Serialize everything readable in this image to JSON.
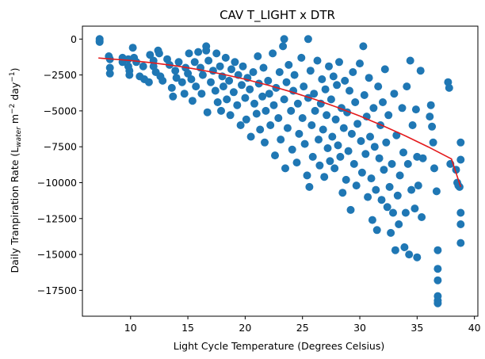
{
  "chart_data": {
    "type": "scatter",
    "title": "CAV T_LIGHT x DTR",
    "xlabel": "Light Cycle Temperature (Degrees Celsius)",
    "ylabel": {
      "pre": "Daily Tranpiration Rate (L",
      "sub1": "water",
      "mid": " m",
      "sup1": "−2",
      "mid2": " day",
      "sup2": "−1",
      "post": ")"
    },
    "xlim": [
      5.8,
      40.3
    ],
    "ylim": [
      -19300,
      900
    ],
    "xticks": [
      10,
      15,
      20,
      25,
      30,
      35,
      40
    ],
    "yticks": [
      0,
      -2500,
      -5000,
      -7500,
      -10000,
      -12500,
      -15000,
      -17500
    ],
    "ytick_labels": [
      "0",
      "−2500",
      "−5000",
      "−7500",
      "−10000",
      "−12500",
      "−15000",
      "−17500"
    ],
    "grid": false,
    "colors": {
      "points": "#1f77b4",
      "fit": "#e41a1c"
    },
    "fit_line": {
      "x": [
        7.2,
        10,
        12,
        14,
        16,
        18,
        20,
        22,
        24,
        26,
        28,
        30,
        32,
        34,
        36,
        38,
        38.8
      ],
      "y": [
        -1320,
        -1490,
        -1660,
        -1870,
        -2130,
        -2440,
        -2800,
        -3210,
        -3670,
        -4180,
        -4740,
        -5360,
        -6030,
        -6750,
        -7520,
        -8350,
        -10300
      ]
    },
    "points": [
      [
        7.3,
        0
      ],
      [
        7.3,
        -200
      ],
      [
        7.3,
        -120
      ],
      [
        8.1,
        -1200
      ],
      [
        8.2,
        -1400
      ],
      [
        8.2,
        -2000
      ],
      [
        8.2,
        -2400
      ],
      [
        9.3,
        -1300
      ],
      [
        9.3,
        -1600
      ],
      [
        9.8,
        -1400
      ],
      [
        9.8,
        -1900
      ],
      [
        9.9,
        -2200
      ],
      [
        9.9,
        -2500
      ],
      [
        10.2,
        -600
      ],
      [
        10.3,
        -1300
      ],
      [
        10.5,
        -1600
      ],
      [
        10.8,
        -2600
      ],
      [
        11.1,
        -1900
      ],
      [
        11.2,
        -2800
      ],
      [
        11.6,
        -3000
      ],
      [
        11.7,
        -1100
      ],
      [
        12.0,
        -1500
      ],
      [
        12.0,
        -1900
      ],
      [
        12.2,
        -2300
      ],
      [
        12.4,
        -800
      ],
      [
        12.5,
        -1000
      ],
      [
        12.6,
        -2600
      ],
      [
        12.8,
        -2900
      ],
      [
        13.2,
        -1400
      ],
      [
        13.4,
        -1800
      ],
      [
        13.6,
        -3400
      ],
      [
        13.7,
        -4000
      ],
      [
        13.9,
        -2200
      ],
      [
        14.0,
        -2700
      ],
      [
        14.2,
        -1600
      ],
      [
        14.5,
        -3000
      ],
      [
        14.7,
        -3800
      ],
      [
        14.8,
        -2000
      ],
      [
        15.0,
        -2400
      ],
      [
        15.1,
        -1000
      ],
      [
        15.3,
        -2800
      ],
      [
        15.4,
        -4300
      ],
      [
        15.6,
        -1600
      ],
      [
        15.7,
        -3300
      ],
      [
        15.9,
        -900
      ],
      [
        16.1,
        -2000
      ],
      [
        16.2,
        -3800
      ],
      [
        16.3,
        -2500
      ],
      [
        16.6,
        -500
      ],
      [
        16.6,
        -800
      ],
      [
        16.7,
        -5100
      ],
      [
        16.8,
        -1500
      ],
      [
        17.0,
        -3000
      ],
      [
        17.2,
        -2200
      ],
      [
        17.4,
        -3600
      ],
      [
        17.5,
        -1000
      ],
      [
        17.6,
        -4400
      ],
      [
        17.8,
        -1900
      ],
      [
        17.9,
        -5000
      ],
      [
        18.0,
        -2600
      ],
      [
        18.1,
        -3300
      ],
      [
        18.3,
        -1300
      ],
      [
        18.4,
        -4200
      ],
      [
        18.6,
        -2900
      ],
      [
        18.7,
        -5300
      ],
      [
        18.8,
        -2100
      ],
      [
        19.0,
        -3700
      ],
      [
        19.1,
        -1600
      ],
      [
        19.3,
        -4600
      ],
      [
        19.4,
        -2500
      ],
      [
        19.6,
        -6000
      ],
      [
        19.7,
        -3200
      ],
      [
        19.8,
        -1900
      ],
      [
        20.0,
        -4100
      ],
      [
        20.1,
        -5600
      ],
      [
        20.2,
        -2700
      ],
      [
        20.4,
        -3500
      ],
      [
        20.5,
        -6800
      ],
      [
        20.7,
        -2300
      ],
      [
        20.8,
        -4500
      ],
      [
        21.0,
        -5200
      ],
      [
        21.1,
        -1200
      ],
      [
        21.2,
        -3100
      ],
      [
        21.3,
        -6300
      ],
      [
        21.5,
        -4000
      ],
      [
        21.6,
        -2000
      ],
      [
        21.7,
        -7200
      ],
      [
        21.8,
        -5000
      ],
      [
        22.0,
        -2900
      ],
      [
        22.1,
        -3800
      ],
      [
        22.2,
        -6000
      ],
      [
        22.4,
        -1000
      ],
      [
        22.5,
        -4600
      ],
      [
        22.6,
        -8100
      ],
      [
        22.7,
        -3400
      ],
      [
        22.9,
        -5500
      ],
      [
        23.0,
        -2300
      ],
      [
        23.1,
        -7000
      ],
      [
        23.3,
        -500
      ],
      [
        23.4,
        -4200
      ],
      [
        23.4,
        0
      ],
      [
        23.5,
        -9000
      ],
      [
        23.6,
        -3000
      ],
      [
        23.7,
        -6200
      ],
      [
        23.8,
        -1800
      ],
      [
        24.0,
        -5000
      ],
      [
        24.1,
        -7700
      ],
      [
        24.2,
        -3600
      ],
      [
        24.3,
        -2500
      ],
      [
        24.5,
        -8600
      ],
      [
        24.6,
        -4500
      ],
      [
        24.7,
        -6600
      ],
      [
        24.9,
        -1300
      ],
      [
        25.0,
        -5500
      ],
      [
        25.1,
        -3300
      ],
      [
        25.2,
        -7300
      ],
      [
        25.4,
        -9500
      ],
      [
        25.5,
        -4100
      ],
      [
        25.5,
        0
      ],
      [
        25.6,
        -10300
      ],
      [
        25.7,
        -2200
      ],
      [
        25.8,
        -6000
      ],
      [
        25.9,
        -8200
      ],
      [
        26.0,
        -3800
      ],
      [
        26.1,
        -5000
      ],
      [
        26.3,
        -1500
      ],
      [
        26.4,
        -7000
      ],
      [
        26.5,
        -8800
      ],
      [
        26.6,
        -4500
      ],
      [
        26.7,
        -2800
      ],
      [
        26.8,
        -6300
      ],
      [
        26.9,
        -9600
      ],
      [
        27.0,
        -3500
      ],
      [
        27.1,
        -5300
      ],
      [
        27.2,
        -7600
      ],
      [
        27.3,
        -1900
      ],
      [
        27.4,
        -8500
      ],
      [
        27.5,
        -4200
      ],
      [
        27.6,
        -6800
      ],
      [
        27.7,
        -2600
      ],
      [
        27.8,
        -9000
      ],
      [
        27.9,
        -5600
      ],
      [
        28.0,
        -3200
      ],
      [
        28.1,
        -7400
      ],
      [
        28.2,
        -1600
      ],
      [
        28.3,
        -8200
      ],
      [
        28.4,
        -4800
      ],
      [
        28.5,
        -10700
      ],
      [
        28.6,
        -6200
      ],
      [
        28.7,
        -2900
      ],
      [
        28.8,
        -9800
      ],
      [
        28.9,
        -5100
      ],
      [
        29.0,
        -7800
      ],
      [
        29.1,
        -3600
      ],
      [
        29.2,
        -11900
      ],
      [
        29.3,
        -6600
      ],
      [
        29.4,
        -2300
      ],
      [
        29.5,
        -8700
      ],
      [
        29.6,
        -4400
      ],
      [
        29.7,
        -10200
      ],
      [
        29.8,
        -5900
      ],
      [
        30.0,
        -1700
      ],
      [
        30.1,
        -7100
      ],
      [
        30.2,
        -9300
      ],
      [
        30.3,
        -500
      ],
      [
        30.4,
        -3900
      ],
      [
        30.5,
        -8000
      ],
      [
        30.6,
        -5400
      ],
      [
        30.7,
        -11000
      ],
      [
        30.8,
        -2700
      ],
      [
        30.9,
        -6800
      ],
      [
        31.0,
        -9700
      ],
      [
        31.1,
        -12600
      ],
      [
        31.2,
        -4800
      ],
      [
        31.3,
        -7500
      ],
      [
        31.4,
        -10500
      ],
      [
        31.5,
        -13300
      ],
      [
        31.6,
        -3300
      ],
      [
        31.7,
        -8300
      ],
      [
        31.8,
        -6000
      ],
      [
        31.9,
        -11200
      ],
      [
        32.0,
        -4400
      ],
      [
        32.1,
        -9100
      ],
      [
        32.2,
        -2100
      ],
      [
        32.3,
        -7200
      ],
      [
        32.4,
        -11700
      ],
      [
        32.5,
        -5300
      ],
      [
        32.6,
        -10300
      ],
      [
        32.7,
        -13500
      ],
      [
        32.8,
        -8700
      ],
      [
        32.9,
        -12100
      ],
      [
        33.0,
        -3800
      ],
      [
        33.1,
        -14700
      ],
      [
        33.2,
        -6700
      ],
      [
        33.3,
        -10900
      ],
      [
        33.4,
        -12900
      ],
      [
        33.5,
        -9500
      ],
      [
        33.7,
        -4800
      ],
      [
        33.8,
        -7900
      ],
      [
        33.9,
        -14500
      ],
      [
        34.0,
        -12100
      ],
      [
        34.1,
        -3300
      ],
      [
        34.2,
        -8700
      ],
      [
        34.3,
        -15000
      ],
      [
        34.4,
        -1500
      ],
      [
        34.5,
        -10500
      ],
      [
        34.6,
        -6000
      ],
      [
        34.8,
        -11800
      ],
      [
        34.9,
        -4900
      ],
      [
        35.0,
        -15200
      ],
      [
        35.0,
        -8200
      ],
      [
        35.1,
        -10200
      ],
      [
        35.3,
        -2200
      ],
      [
        35.4,
        -12400
      ],
      [
        35.5,
        -8300
      ],
      [
        36.1,
        -5400
      ],
      [
        36.2,
        -4600
      ],
      [
        36.3,
        -6100
      ],
      [
        36.4,
        -7200
      ],
      [
        36.5,
        -9000
      ],
      [
        36.7,
        -10600
      ],
      [
        36.8,
        -14700
      ],
      [
        36.8,
        -16000
      ],
      [
        36.8,
        -16800
      ],
      [
        36.8,
        -17900
      ],
      [
        36.8,
        -18200
      ],
      [
        36.8,
        -18400
      ],
      [
        37.7,
        -3000
      ],
      [
        37.8,
        -3400
      ],
      [
        37.9,
        -8700
      ],
      [
        38.4,
        -9100
      ],
      [
        38.5,
        -10000
      ],
      [
        38.6,
        -10200
      ],
      [
        38.7,
        -10300
      ],
      [
        38.8,
        -12100
      ],
      [
        38.8,
        -12900
      ],
      [
        38.8,
        -14200
      ],
      [
        38.8,
        -7200
      ],
      [
        38.8,
        -8400
      ]
    ]
  }
}
